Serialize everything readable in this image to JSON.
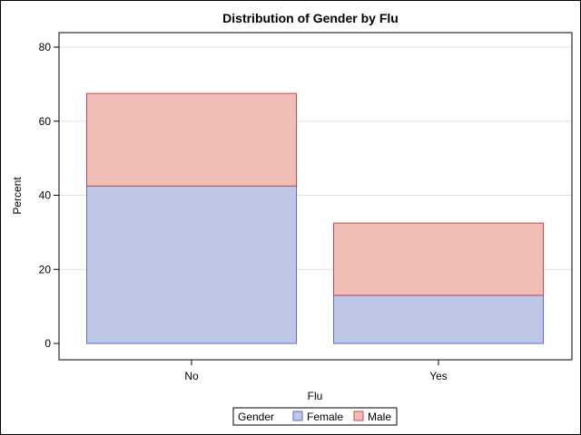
{
  "chart_data": {
    "type": "bar",
    "stacked": true,
    "title": "Distribution of Gender by Flu",
    "xlabel": "Flu",
    "ylabel": "Percent",
    "categories": [
      "No",
      "Yes"
    ],
    "ylim": [
      -4,
      84
    ],
    "yticks": [
      0,
      20,
      40,
      60,
      80
    ],
    "grid": true,
    "legend_position": "bottom",
    "legend_title": "Gender",
    "series": [
      {
        "name": "Female",
        "values": [
          42.5,
          13.0
        ],
        "color": "#bec8e6",
        "edge": "#5b6ee0"
      },
      {
        "name": "Male",
        "values": [
          25.0,
          19.5
        ],
        "color": "#f0beb6",
        "edge": "#c84650"
      }
    ]
  }
}
